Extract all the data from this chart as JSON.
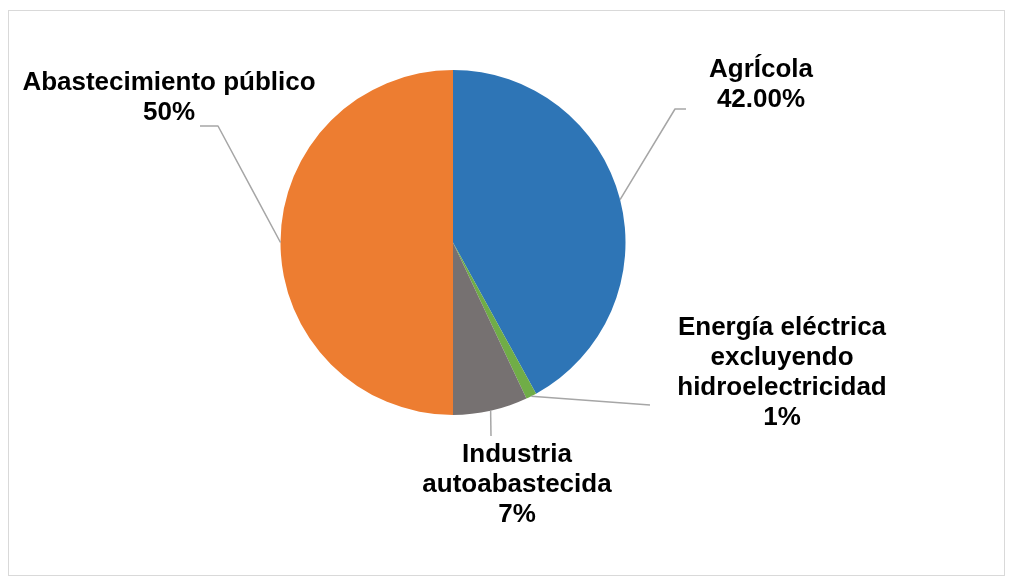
{
  "chart_data": {
    "type": "pie",
    "categories": [
      "AgrÍcola",
      "Energía eléctrica excluyendo hidroelectricidad",
      "Industria autoabastecida",
      "Abastecimiento público"
    ],
    "values": [
      42,
      1,
      7,
      50
    ],
    "colors": [
      "#2e75b6",
      "#70ad47",
      "#767171",
      "#ed7d31"
    ],
    "value_labels": [
      "42.00%",
      "1%",
      "7%",
      "50%"
    ]
  }
}
